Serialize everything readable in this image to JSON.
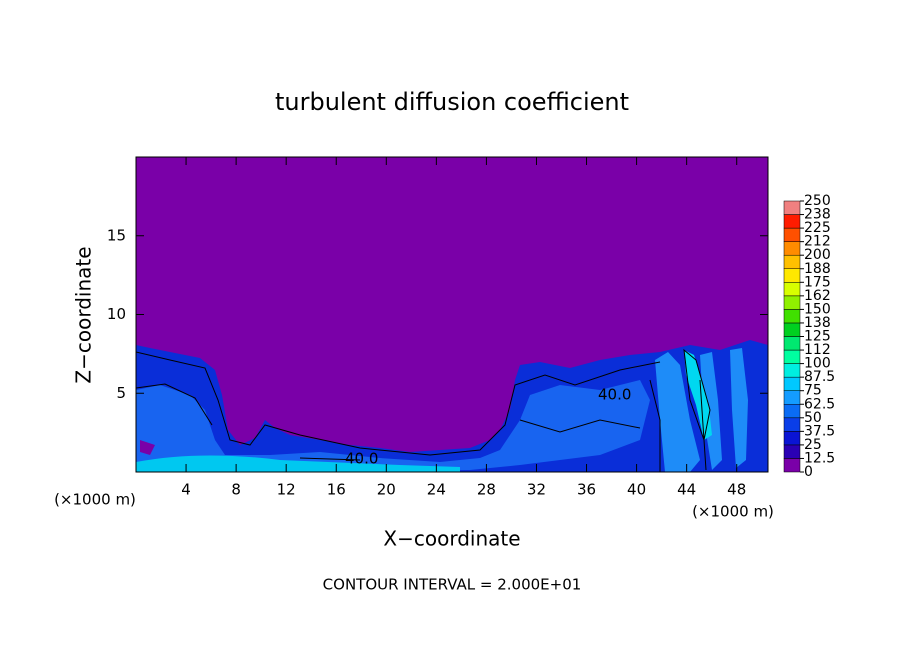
{
  "chart_data": {
    "type": "contour",
    "title": "turbulent diffusion coefficient",
    "xlabel": "X−coordinate",
    "ylabel": "Z−coordinate",
    "x_unit": "(×1000 m)",
    "xlim": [
      0,
      50.5
    ],
    "ylim": [
      0,
      20
    ],
    "xticks": [
      4,
      8,
      12,
      16,
      20,
      24,
      28,
      32,
      36,
      40,
      44,
      48
    ],
    "yticks": [
      5,
      10,
      15
    ],
    "colorbar": {
      "levels": [
        0,
        12.5,
        25,
        37.5,
        50,
        62.5,
        75,
        87.5,
        100,
        {
          "value": 112.5,
          "label": "112"
        },
        125,
        {
          "value": 137.5,
          "label": "138"
        },
        150,
        {
          "value": 162.5,
          "label": "162"
        },
        175,
        {
          "value": 187.5,
          "label": "188"
        },
        200,
        {
          "value": 212.5,
          "label": "212"
        },
        225,
        {
          "value": 237.5,
          "label": "238"
        },
        250
      ],
      "colors": [
        "#7a00a8",
        "#2a00b4",
        "#0a14d4",
        "#0a3ee8",
        "#0a6cf4",
        "#149cff",
        "#00c8ff",
        "#00eee0",
        "#00ffa0",
        "#00e870",
        "#00d020",
        "#40e000",
        "#90f000",
        "#d8ff00",
        "#ffe800",
        "#ffc000",
        "#ff8c00",
        "#ff5000",
        "#ff1c00",
        "#f08080"
      ]
    },
    "contour_labels": [
      "40.0",
      "40.0"
    ],
    "footer": "CONTOUR INTERVAL = 2.000E+01"
  }
}
